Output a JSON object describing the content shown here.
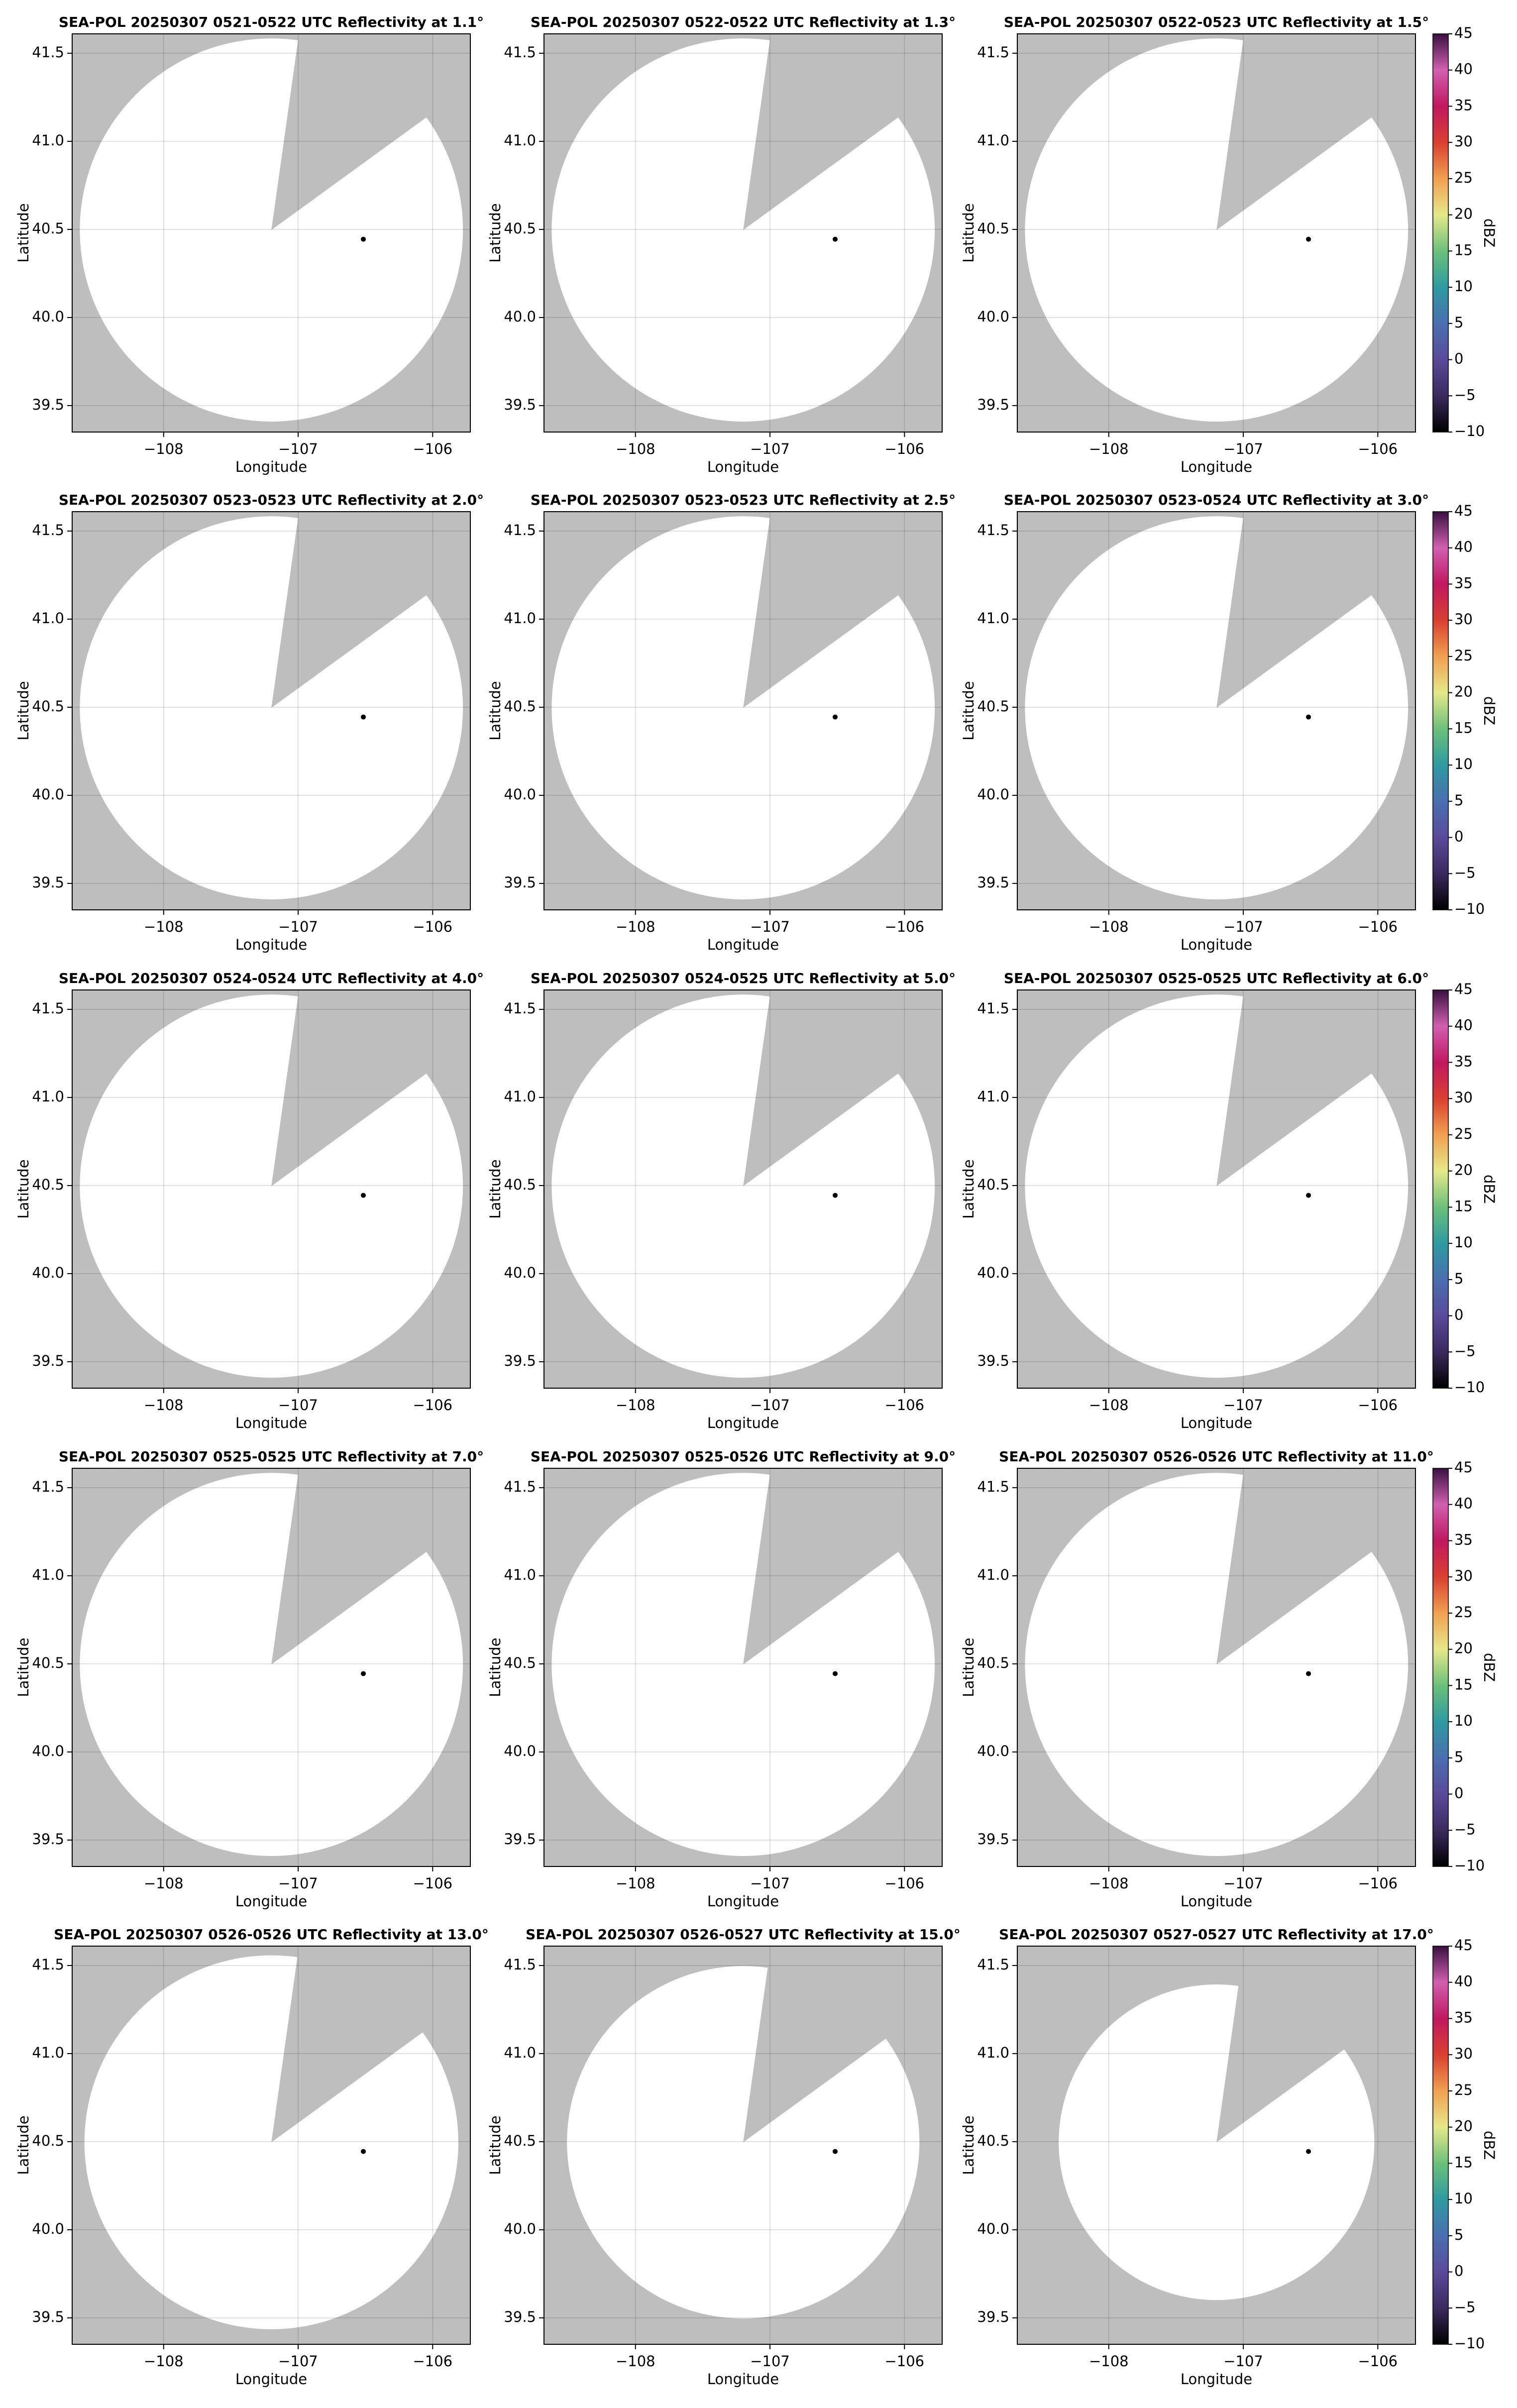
{
  "chart_data": [
    {
      "type": "ppi",
      "title": "SEA-POL 20250307 0521-0522 UTC Reflectivity at 1.1°",
      "xlabel": "Longitude",
      "ylabel": "Latitude",
      "xlim": [
        -108.68,
        -105.72
      ],
      "ylim": [
        39.35,
        41.61
      ],
      "xticks": [
        {
          "value": -108,
          "label": "−108"
        },
        {
          "value": -107,
          "label": "−107"
        },
        {
          "value": -106,
          "label": "−106"
        }
      ],
      "yticks": [
        39.5,
        {
          "value": 40,
          "label": "40.0"
        },
        40.5,
        {
          "value": 41,
          "label": "41.0"
        },
        41.5
      ],
      "grid": true
    },
    {
      "type": "ppi",
      "title": "SEA-POL 20250307 0522-0522 UTC Reflectivity at 1.3°",
      "xlabel": "Longitude",
      "ylabel": "Latitude",
      "xlim": [
        -108.68,
        -105.72
      ],
      "ylim": [
        39.35,
        41.61
      ],
      "xticks": [
        {
          "value": -108,
          "label": "−108"
        },
        {
          "value": -107,
          "label": "−107"
        },
        {
          "value": -106,
          "label": "−106"
        }
      ],
      "yticks": [
        39.5,
        {
          "value": 40,
          "label": "40.0"
        },
        40.5,
        {
          "value": 41,
          "label": "41.0"
        },
        41.5
      ],
      "grid": true
    },
    {
      "type": "ppi",
      "title": "SEA-POL 20250307 0522-0523 UTC Reflectivity at 1.5°",
      "xlabel": "Longitude",
      "ylabel": "Latitude",
      "xlim": [
        -108.68,
        -105.72
      ],
      "ylim": [
        39.35,
        41.61
      ],
      "xticks": [
        {
          "value": -108,
          "label": "−108"
        },
        {
          "value": -107,
          "label": "−107"
        },
        {
          "value": -106,
          "label": "−106"
        }
      ],
      "yticks": [
        39.5,
        {
          "value": 40,
          "label": "40.0"
        },
        40.5,
        {
          "value": 41,
          "label": "41.0"
        },
        41.5
      ],
      "grid": true,
      "colorbar": {
        "label": "dBZ",
        "lim": [
          -10,
          45
        ],
        "ticks": [
          {
            "value": -10,
            "label": "−10"
          },
          {
            "value": -5,
            "label": "−5"
          },
          0,
          5,
          10,
          15,
          20,
          25,
          30,
          35,
          40,
          45
        ],
        "colors": [
          "#000000",
          "#3b2a5e",
          "#5a4a9a",
          "#4a6fb0",
          "#2e9aa0",
          "#6cc07a",
          "#e6e88a",
          "#f0a050",
          "#d84030",
          "#c01860",
          "#d060b0",
          "#3a1040"
        ]
      }
    },
    {
      "type": "ppi",
      "title": "SEA-POL 20250307 0523-0523 UTC Reflectivity at 2.0°",
      "xlabel": "Longitude",
      "ylabel": "Latitude",
      "xlim": [
        -108.68,
        -105.72
      ],
      "ylim": [
        39.35,
        41.61
      ],
      "xticks": [
        {
          "value": -108,
          "label": "−108"
        },
        {
          "value": -107,
          "label": "−107"
        },
        {
          "value": -106,
          "label": "−106"
        }
      ],
      "yticks": [
        39.5,
        {
          "value": 40,
          "label": "40.0"
        },
        40.5,
        {
          "value": 41,
          "label": "41.0"
        },
        41.5
      ],
      "grid": true
    },
    {
      "type": "ppi",
      "title": "SEA-POL 20250307 0523-0523 UTC Reflectivity at 2.5°",
      "xlabel": "Longitude",
      "ylabel": "Latitude",
      "xlim": [
        -108.68,
        -105.72
      ],
      "ylim": [
        39.35,
        41.61
      ],
      "xticks": [
        {
          "value": -108,
          "label": "−108"
        },
        {
          "value": -107,
          "label": "−107"
        },
        {
          "value": -106,
          "label": "−106"
        }
      ],
      "yticks": [
        39.5,
        {
          "value": 40,
          "label": "40.0"
        },
        40.5,
        {
          "value": 41,
          "label": "41.0"
        },
        41.5
      ],
      "grid": true
    },
    {
      "type": "ppi",
      "title": "SEA-POL 20250307 0523-0524 UTC Reflectivity at 3.0°",
      "xlabel": "Longitude",
      "ylabel": "Latitude",
      "xlim": [
        -108.68,
        -105.72
      ],
      "ylim": [
        39.35,
        41.61
      ],
      "xticks": [
        {
          "value": -108,
          "label": "−108"
        },
        {
          "value": -107,
          "label": "−107"
        },
        {
          "value": -106,
          "label": "−106"
        }
      ],
      "yticks": [
        39.5,
        {
          "value": 40,
          "label": "40.0"
        },
        40.5,
        {
          "value": 41,
          "label": "41.0"
        },
        41.5
      ],
      "grid": true,
      "colorbar": {
        "label": "dBZ",
        "lim": [
          -10,
          45
        ],
        "ticks": [
          {
            "value": -10,
            "label": "−10"
          },
          {
            "value": -5,
            "label": "−5"
          },
          0,
          5,
          10,
          15,
          20,
          25,
          30,
          35,
          40,
          45
        ],
        "colors": [
          "#000000",
          "#3b2a5e",
          "#5a4a9a",
          "#4a6fb0",
          "#2e9aa0",
          "#6cc07a",
          "#e6e88a",
          "#f0a050",
          "#d84030",
          "#c01860",
          "#d060b0",
          "#3a1040"
        ]
      }
    },
    {
      "type": "ppi",
      "title": "SEA-POL 20250307 0524-0524 UTC Reflectivity at 4.0°",
      "xlabel": "Longitude",
      "ylabel": "Latitude",
      "xlim": [
        -108.68,
        -105.72
      ],
      "ylim": [
        39.35,
        41.61
      ],
      "xticks": [
        {
          "value": -108,
          "label": "−108"
        },
        {
          "value": -107,
          "label": "−107"
        },
        {
          "value": -106,
          "label": "−106"
        }
      ],
      "yticks": [
        39.5,
        {
          "value": 40,
          "label": "40.0"
        },
        40.5,
        {
          "value": 41,
          "label": "41.0"
        },
        41.5
      ],
      "grid": true
    },
    {
      "type": "ppi",
      "title": "SEA-POL 20250307 0524-0525 UTC Reflectivity at 5.0°",
      "xlabel": "Longitude",
      "ylabel": "Latitude",
      "xlim": [
        -108.68,
        -105.72
      ],
      "ylim": [
        39.35,
        41.61
      ],
      "xticks": [
        {
          "value": -108,
          "label": "−108"
        },
        {
          "value": -107,
          "label": "−107"
        },
        {
          "value": -106,
          "label": "−106"
        }
      ],
      "yticks": [
        39.5,
        {
          "value": 40,
          "label": "40.0"
        },
        40.5,
        {
          "value": 41,
          "label": "41.0"
        },
        41.5
      ],
      "grid": true
    },
    {
      "type": "ppi",
      "title": "SEA-POL 20250307 0525-0525 UTC Reflectivity at 6.0°",
      "xlabel": "Longitude",
      "ylabel": "Latitude",
      "xlim": [
        -108.68,
        -105.72
      ],
      "ylim": [
        39.35,
        41.61
      ],
      "xticks": [
        {
          "value": -108,
          "label": "−108"
        },
        {
          "value": -107,
          "label": "−107"
        },
        {
          "value": -106,
          "label": "−106"
        }
      ],
      "yticks": [
        39.5,
        {
          "value": 40,
          "label": "40.0"
        },
        40.5,
        {
          "value": 41,
          "label": "41.0"
        },
        41.5
      ],
      "grid": true,
      "colorbar": {
        "label": "dBZ",
        "lim": [
          -10,
          45
        ],
        "ticks": [
          {
            "value": -10,
            "label": "−10"
          },
          {
            "value": -5,
            "label": "−5"
          },
          0,
          5,
          10,
          15,
          20,
          25,
          30,
          35,
          40,
          45
        ],
        "colors": [
          "#000000",
          "#3b2a5e",
          "#5a4a9a",
          "#4a6fb0",
          "#2e9aa0",
          "#6cc07a",
          "#e6e88a",
          "#f0a050",
          "#d84030",
          "#c01860",
          "#d060b0",
          "#3a1040"
        ]
      }
    },
    {
      "type": "ppi",
      "title": "SEA-POL 20250307 0525-0525 UTC Reflectivity at 7.0°",
      "xlabel": "Longitude",
      "ylabel": "Latitude",
      "xlim": [
        -108.68,
        -105.72
      ],
      "ylim": [
        39.35,
        41.61
      ],
      "xticks": [
        {
          "value": -108,
          "label": "−108"
        },
        {
          "value": -107,
          "label": "−107"
        },
        {
          "value": -106,
          "label": "−106"
        }
      ],
      "yticks": [
        39.5,
        {
          "value": 40,
          "label": "40.0"
        },
        40.5,
        {
          "value": 41,
          "label": "41.0"
        },
        41.5
      ],
      "grid": true
    },
    {
      "type": "ppi",
      "title": "SEA-POL 20250307 0525-0526 UTC Reflectivity at 9.0°",
      "xlabel": "Longitude",
      "ylabel": "Latitude",
      "xlim": [
        -108.68,
        -105.72
      ],
      "ylim": [
        39.35,
        41.61
      ],
      "xticks": [
        {
          "value": -108,
          "label": "−108"
        },
        {
          "value": -107,
          "label": "−107"
        },
        {
          "value": -106,
          "label": "−106"
        }
      ],
      "yticks": [
        39.5,
        {
          "value": 40,
          "label": "40.0"
        },
        40.5,
        {
          "value": 41,
          "label": "41.0"
        },
        41.5
      ],
      "grid": true
    },
    {
      "type": "ppi",
      "title": "SEA-POL 20250307 0526-0526 UTC Reflectivity at 11.0°",
      "xlabel": "Longitude",
      "ylabel": "Latitude",
      "xlim": [
        -108.68,
        -105.72
      ],
      "ylim": [
        39.35,
        41.61
      ],
      "xticks": [
        {
          "value": -108,
          "label": "−108"
        },
        {
          "value": -107,
          "label": "−107"
        },
        {
          "value": -106,
          "label": "−106"
        }
      ],
      "yticks": [
        39.5,
        {
          "value": 40,
          "label": "40.0"
        },
        40.5,
        {
          "value": 41,
          "label": "41.0"
        },
        41.5
      ],
      "grid": true,
      "colorbar": {
        "label": "dBZ",
        "lim": [
          -10,
          45
        ],
        "ticks": [
          {
            "value": -10,
            "label": "−10"
          },
          {
            "value": -5,
            "label": "−5"
          },
          0,
          5,
          10,
          15,
          20,
          25,
          30,
          35,
          40,
          45
        ],
        "colors": [
          "#000000",
          "#3b2a5e",
          "#5a4a9a",
          "#4a6fb0",
          "#2e9aa0",
          "#6cc07a",
          "#e6e88a",
          "#f0a050",
          "#d84030",
          "#c01860",
          "#d060b0",
          "#3a1040"
        ]
      }
    },
    {
      "type": "ppi",
      "title": "SEA-POL 20250307 0526-0526 UTC Reflectivity at 13.0°",
      "xlabel": "Longitude",
      "ylabel": "Latitude",
      "xlim": [
        -108.68,
        -105.72
      ],
      "ylim": [
        39.35,
        41.61
      ],
      "xticks": [
        {
          "value": -108,
          "label": "−108"
        },
        {
          "value": -107,
          "label": "−107"
        },
        {
          "value": -106,
          "label": "−106"
        }
      ],
      "yticks": [
        39.5,
        {
          "value": 40,
          "label": "40.0"
        },
        40.5,
        {
          "value": 41,
          "label": "41.0"
        },
        41.5
      ],
      "grid": true
    },
    {
      "type": "ppi",
      "title": "SEA-POL 20250307 0526-0527 UTC Reflectivity at 15.0°",
      "xlabel": "Longitude",
      "ylabel": "Latitude",
      "xlim": [
        -108.68,
        -105.72
      ],
      "ylim": [
        39.35,
        41.61
      ],
      "xticks": [
        {
          "value": -108,
          "label": "−108"
        },
        {
          "value": -107,
          "label": "−107"
        },
        {
          "value": -106,
          "label": "−106"
        }
      ],
      "yticks": [
        39.5,
        {
          "value": 40,
          "label": "40.0"
        },
        40.5,
        {
          "value": 41,
          "label": "41.0"
        },
        41.5
      ],
      "grid": true
    },
    {
      "type": "ppi",
      "title": "SEA-POL 20250307 0527-0527 UTC Reflectivity at 17.0°",
      "xlabel": "Longitude",
      "ylabel": "Latitude",
      "xlim": [
        -108.68,
        -105.72
      ],
      "ylim": [
        39.35,
        41.61
      ],
      "xticks": [
        {
          "value": -108,
          "label": "−108"
        },
        {
          "value": -107,
          "label": "−107"
        },
        {
          "value": -106,
          "label": "−106"
        }
      ],
      "yticks": [
        39.5,
        {
          "value": 40,
          "label": "40.0"
        },
        40.5,
        {
          "value": 41,
          "label": "41.0"
        },
        41.5
      ],
      "grid": true,
      "colorbar": {
        "label": "dBZ",
        "lim": [
          -10,
          45
        ],
        "ticks": [
          {
            "value": -10,
            "label": "−10"
          },
          {
            "value": -5,
            "label": "−5"
          },
          0,
          5,
          10,
          15,
          20,
          25,
          30,
          35,
          40,
          45
        ],
        "colors": [
          "#000000",
          "#3b2a5e",
          "#5a4a9a",
          "#4a6fb0",
          "#2e9aa0",
          "#6cc07a",
          "#e6e88a",
          "#f0a050",
          "#d84030",
          "#c01860",
          "#d060b0",
          "#3a1040"
        ]
      }
    }
  ]
}
